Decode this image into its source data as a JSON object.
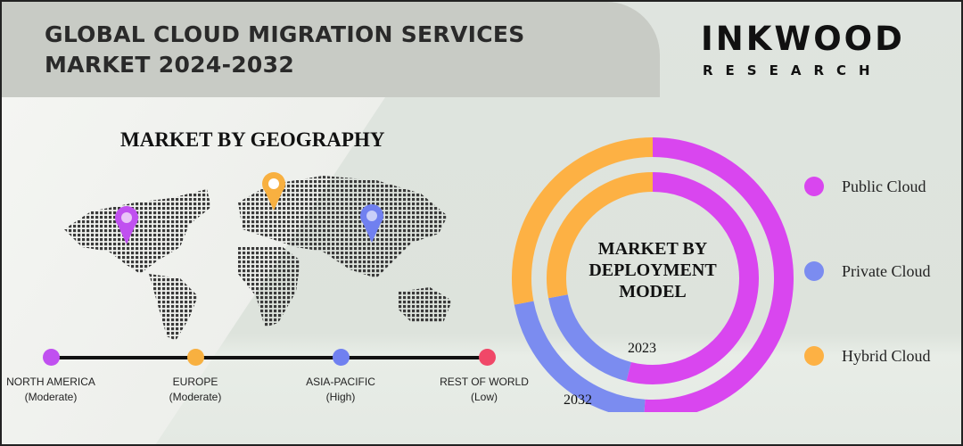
{
  "header": {
    "title_line1": "GLOBAL CLOUD MIGRATION SERVICES",
    "title_line2": "MARKET 2024-2032"
  },
  "logo": {
    "name": "INKWOOD",
    "sub": "RESEARCH"
  },
  "geography": {
    "title": "MARKET BY GEOGRAPHY",
    "regions": [
      {
        "name": "NORTH AMERICA",
        "level": "(Moderate)",
        "color": "#c050f0"
      },
      {
        "name": "EUROPE",
        "level": "(Moderate)",
        "color": "#f8b040"
      },
      {
        "name": "ASIA-PACIFIC",
        "level": "(High)",
        "color": "#7080f0"
      },
      {
        "name": "REST OF WORLD",
        "level": "(Low)",
        "color": "#f04868"
      }
    ],
    "map_pins": [
      "north-america-pin",
      "europe-pin",
      "asia-pacific-pin"
    ]
  },
  "chart_data": {
    "type": "donut",
    "title": "MARKET BY DEPLOYMENT MODEL",
    "categories": [
      "Public Cloud",
      "Private Cloud",
      "Hybrid Cloud"
    ],
    "colors": [
      "#d946ef",
      "#7b8cf0",
      "#fdb144"
    ],
    "series": [
      {
        "name": "2023",
        "values": [
          54,
          18,
          28
        ]
      },
      {
        "name": "2032",
        "values": [
          51,
          21,
          28
        ]
      }
    ],
    "legend_position": "right"
  }
}
